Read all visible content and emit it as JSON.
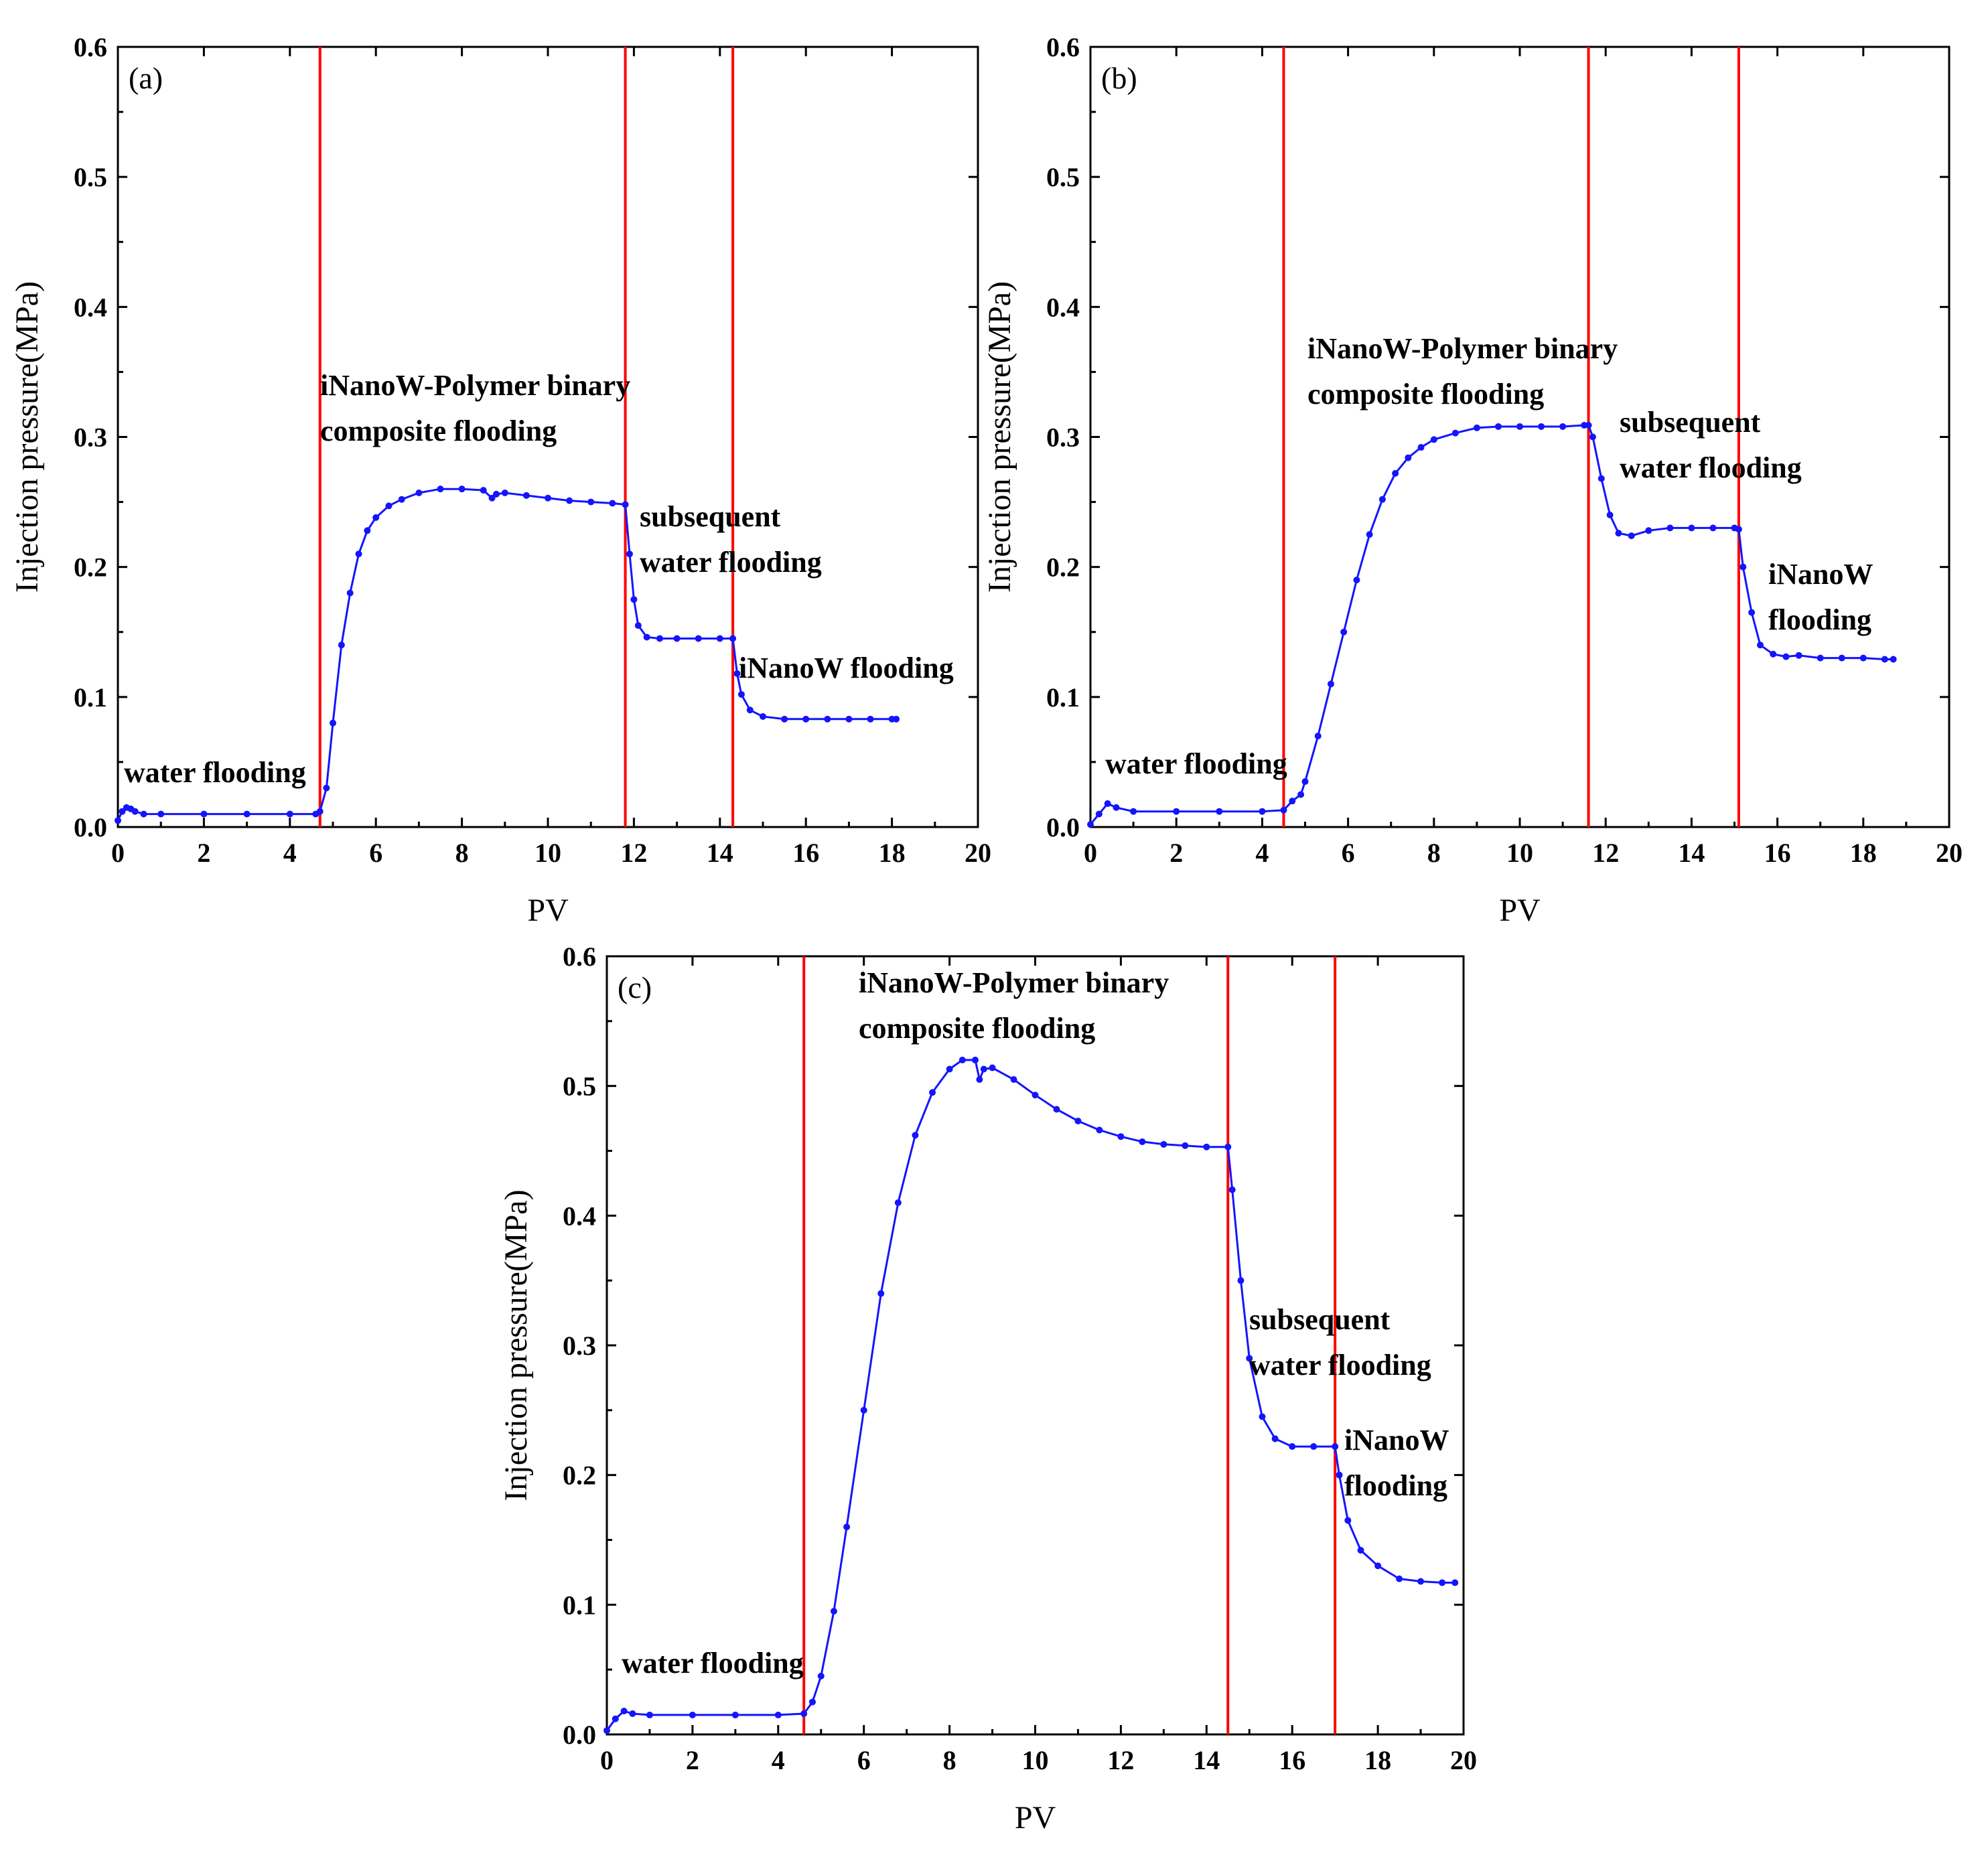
{
  "chart_data": [
    {
      "id": "a",
      "type": "line",
      "panel_label": "(a)",
      "xlabel": "PV",
      "ylabel": "Injection pressure(MPa)",
      "xlim": [
        0,
        20
      ],
      "ylim": [
        0,
        0.6
      ],
      "xticks": [
        "0",
        "2",
        "4",
        "6",
        "8",
        "10",
        "12",
        "14",
        "16",
        "18",
        "20"
      ],
      "yticks": [
        "0.0",
        "0.1",
        "0.2",
        "0.3",
        "0.4",
        "0.5",
        "0.6"
      ],
      "phase_boundaries": [
        4.7,
        11.8,
        14.3
      ],
      "annotations": [
        {
          "lines": [
            "water flooding"
          ]
        },
        {
          "lines": [
            "iNanoW-Polymer binary",
            "composite flooding"
          ]
        },
        {
          "lines": [
            "subsequent",
            "water flooding"
          ]
        },
        {
          "lines": [
            "iNanoW flooding"
          ]
        }
      ],
      "series": [
        {
          "name": "Injection pressure",
          "color": "#1414ff",
          "x": [
            0.0,
            0.1,
            0.2,
            0.3,
            0.4,
            0.6,
            1.0,
            2.0,
            3.0,
            4.0,
            4.6,
            4.7,
            4.85,
            5.0,
            5.2,
            5.4,
            5.6,
            5.8,
            6.0,
            6.3,
            6.6,
            7.0,
            7.5,
            8.0,
            8.5,
            8.7,
            8.8,
            9.0,
            9.5,
            10.0,
            10.5,
            11.0,
            11.5,
            11.8,
            11.9,
            12.0,
            12.1,
            12.3,
            12.6,
            13.0,
            13.5,
            14.0,
            14.3,
            14.4,
            14.5,
            14.7,
            15.0,
            15.5,
            16.0,
            16.5,
            17.0,
            17.5,
            18.0,
            18.1
          ],
          "y": [
            0.005,
            0.012,
            0.015,
            0.014,
            0.012,
            0.01,
            0.01,
            0.01,
            0.01,
            0.01,
            0.01,
            0.012,
            0.03,
            0.08,
            0.14,
            0.18,
            0.21,
            0.228,
            0.238,
            0.247,
            0.252,
            0.257,
            0.26,
            0.26,
            0.259,
            0.253,
            0.256,
            0.257,
            0.255,
            0.253,
            0.251,
            0.25,
            0.249,
            0.248,
            0.21,
            0.175,
            0.155,
            0.146,
            0.145,
            0.145,
            0.145,
            0.145,
            0.145,
            0.118,
            0.102,
            0.09,
            0.085,
            0.083,
            0.083,
            0.083,
            0.083,
            0.083,
            0.083,
            0.083
          ]
        }
      ]
    },
    {
      "id": "b",
      "type": "line",
      "panel_label": "(b)",
      "xlabel": "PV",
      "ylabel": "Injection pressure(MPa)",
      "xlim": [
        0,
        20
      ],
      "ylim": [
        0,
        0.6
      ],
      "xticks": [
        "0",
        "2",
        "4",
        "6",
        "8",
        "10",
        "12",
        "14",
        "16",
        "18",
        "20"
      ],
      "yticks": [
        "0.0",
        "0.1",
        "0.2",
        "0.3",
        "0.4",
        "0.5",
        "0.6"
      ],
      "phase_boundaries": [
        4.5,
        11.6,
        15.1
      ],
      "annotations": [
        {
          "lines": [
            "water flooding"
          ]
        },
        {
          "lines": [
            "iNanoW-Polymer binary",
            "composite flooding"
          ]
        },
        {
          "lines": [
            "subsequent",
            "water flooding"
          ]
        },
        {
          "lines": [
            "iNanoW",
            "flooding"
          ]
        }
      ],
      "series": [
        {
          "name": "Injection pressure",
          "color": "#1414ff",
          "x": [
            0.0,
            0.2,
            0.4,
            0.6,
            1.0,
            2.0,
            3.0,
            4.0,
            4.5,
            4.7,
            4.9,
            5.0,
            5.3,
            5.6,
            5.9,
            6.2,
            6.5,
            6.8,
            7.1,
            7.4,
            7.7,
            8.0,
            8.5,
            9.0,
            9.5,
            10.0,
            10.5,
            11.0,
            11.5,
            11.6,
            11.7,
            11.9,
            12.1,
            12.3,
            12.6,
            13.0,
            13.5,
            14.0,
            14.5,
            15.0,
            15.1,
            15.2,
            15.4,
            15.6,
            15.9,
            16.2,
            16.5,
            17.0,
            17.5,
            18.0,
            18.5,
            18.7
          ],
          "y": [
            0.002,
            0.01,
            0.018,
            0.015,
            0.012,
            0.012,
            0.012,
            0.012,
            0.013,
            0.02,
            0.025,
            0.035,
            0.07,
            0.11,
            0.15,
            0.19,
            0.225,
            0.252,
            0.272,
            0.284,
            0.292,
            0.298,
            0.303,
            0.307,
            0.308,
            0.308,
            0.308,
            0.308,
            0.309,
            0.309,
            0.3,
            0.268,
            0.24,
            0.226,
            0.224,
            0.228,
            0.23,
            0.23,
            0.23,
            0.23,
            0.229,
            0.2,
            0.165,
            0.14,
            0.133,
            0.131,
            0.132,
            0.13,
            0.13,
            0.13,
            0.129,
            0.129
          ]
        }
      ]
    },
    {
      "id": "c",
      "type": "line",
      "panel_label": "(c)",
      "xlabel": "PV",
      "ylabel": "Injection pressure(MPa)",
      "xlim": [
        0,
        20
      ],
      "ylim": [
        0,
        0.6
      ],
      "xticks": [
        "0",
        "2",
        "4",
        "6",
        "8",
        "10",
        "12",
        "14",
        "16",
        "18",
        "20"
      ],
      "yticks": [
        "0.0",
        "0.1",
        "0.2",
        "0.3",
        "0.4",
        "0.5",
        "0.6"
      ],
      "phase_boundaries": [
        4.6,
        14.5,
        17.0
      ],
      "annotations": [
        {
          "lines": [
            "water flooding"
          ]
        },
        {
          "lines": [
            "iNanoW-Polymer binary",
            "composite flooding"
          ]
        },
        {
          "lines": [
            "subsequent",
            "water flooding"
          ]
        },
        {
          "lines": [
            "iNanoW",
            "flooding"
          ]
        }
      ],
      "series": [
        {
          "name": "Injection pressure",
          "color": "#1414ff",
          "x": [
            0.0,
            0.2,
            0.4,
            0.6,
            1.0,
            2.0,
            3.0,
            4.0,
            4.6,
            4.8,
            5.0,
            5.3,
            5.6,
            6.0,
            6.4,
            6.8,
            7.2,
            7.6,
            8.0,
            8.3,
            8.6,
            8.7,
            8.8,
            9.0,
            9.5,
            10.0,
            10.5,
            11.0,
            11.5,
            12.0,
            12.5,
            13.0,
            13.5,
            14.0,
            14.5,
            14.6,
            14.8,
            15.0,
            15.3,
            15.6,
            16.0,
            16.5,
            17.0,
            17.1,
            17.3,
            17.6,
            18.0,
            18.5,
            19.0,
            19.5,
            19.8
          ],
          "y": [
            0.003,
            0.012,
            0.018,
            0.016,
            0.015,
            0.015,
            0.015,
            0.015,
            0.016,
            0.025,
            0.045,
            0.095,
            0.16,
            0.25,
            0.34,
            0.41,
            0.462,
            0.495,
            0.513,
            0.52,
            0.52,
            0.505,
            0.513,
            0.514,
            0.505,
            0.493,
            0.482,
            0.473,
            0.466,
            0.461,
            0.457,
            0.455,
            0.454,
            0.453,
            0.453,
            0.42,
            0.35,
            0.29,
            0.245,
            0.228,
            0.222,
            0.222,
            0.222,
            0.2,
            0.165,
            0.142,
            0.13,
            0.12,
            0.118,
            0.117,
            0.117
          ]
        }
      ]
    }
  ]
}
